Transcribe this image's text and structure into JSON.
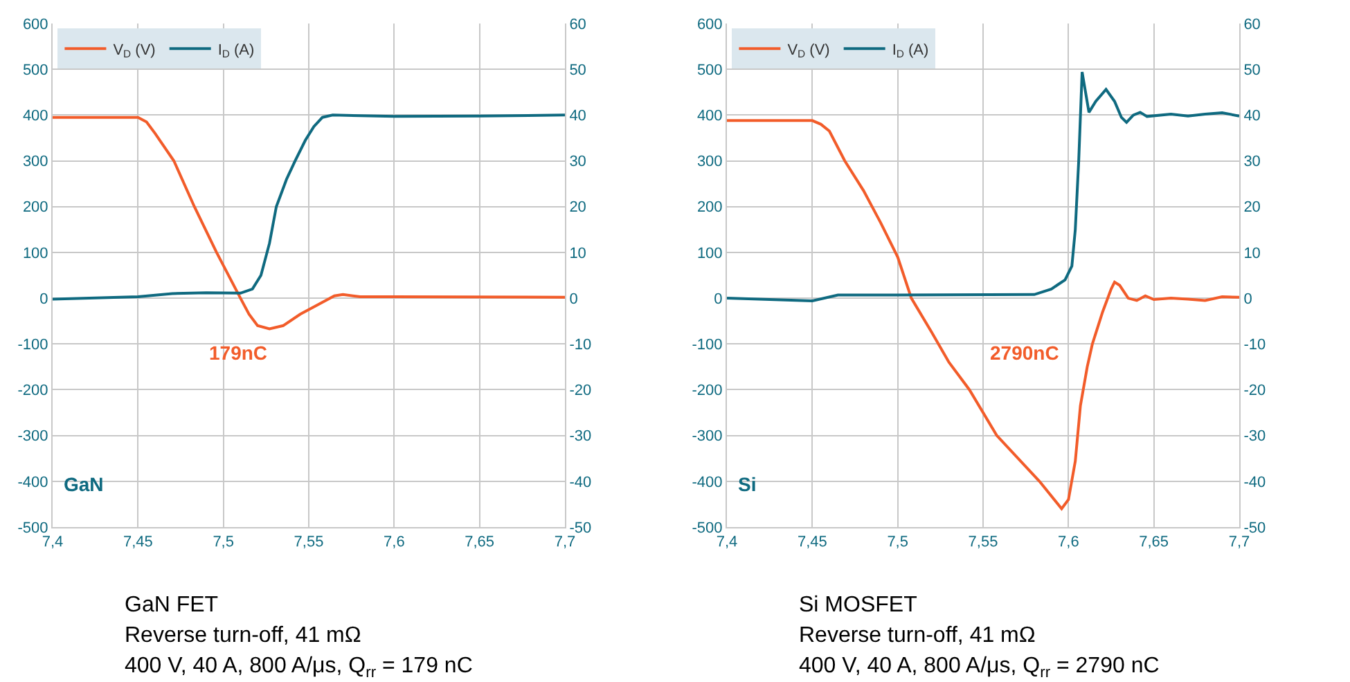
{
  "chart_data": [
    {
      "type": "line",
      "annotations": [
        "179nC",
        "GaN",
        "GaN FET",
        "Reverse turn-off, 41 mΩ",
        "400 V, 40 A, 800 A/μs, Q$_{rr}$ = 179 nC"
      ],
      "series": [
        {
          "name": "V$_{D}$ (V)",
          "color": "#f25c2a",
          "x": [
            7.4,
            7.45,
            7.455,
            7.46,
            7.471,
            7.483,
            7.496,
            7.51,
            7.515,
            7.52,
            7.527,
            7.535,
            7.545,
            7.555,
            7.565,
            7.57,
            7.58,
            7.6,
            7.7
          ],
          "values": [
            395,
            395,
            385,
            360,
            300,
            200,
            100,
            0,
            -35,
            -60,
            -67,
            -60,
            -35,
            -15,
            5,
            8,
            3,
            3,
            2
          ]
        },
        {
          "name": "I$_{D}$ (A)",
          "color": "#0f6a80",
          "axis": "y2",
          "x": [
            7.4,
            7.45,
            7.47,
            7.49,
            7.51,
            7.517,
            7.522,
            7.527,
            7.531,
            7.537,
            7.542,
            7.548,
            7.553,
            7.558,
            7.564,
            7.6,
            7.65,
            7.7
          ],
          "values": [
            -0.2,
            0.3,
            1.0,
            1.2,
            1.1,
            2,
            5,
            12,
            20,
            26,
            30,
            34.5,
            37.5,
            39.5,
            40,
            39.7,
            39.8,
            40
          ]
        }
      ],
      "xlim": [
        7.4,
        7.7
      ],
      "xticks": [
        {
          "value": 7.4,
          "label": "7,4"
        },
        {
          "value": 7.45,
          "label": "7,45"
        },
        {
          "value": 7.5,
          "label": "7,5"
        },
        {
          "value": 7.55,
          "label": "7,55"
        },
        {
          "value": 7.6,
          "label": "7,6"
        },
        {
          "value": 7.65,
          "label": "7,65"
        },
        {
          "value": 7.7,
          "label": "7,7"
        }
      ],
      "ylim": [
        -500,
        600
      ],
      "yticks": [
        -500,
        -400,
        -300,
        -200,
        -100,
        0,
        100,
        200,
        300,
        400,
        500,
        600
      ],
      "y2lim": [
        -50,
        60
      ],
      "y2ticks": [
        -50,
        -40,
        -30,
        -20,
        -10,
        0,
        10,
        20,
        30,
        40,
        50,
        60
      ],
      "grid": true,
      "legend": "top left",
      "marker": "none",
      "line_style": "solid"
    },
    {
      "type": "line",
      "annotations": [
        "2790nC",
        "Si",
        "Si MOSFET",
        "Reverse turn-off, 41 mΩ",
        "400 V, 40 A, 800 A/μs, Q$_{rr}$ = 2790 nC"
      ],
      "series": [
        {
          "name": "V$_{D}$ (V)",
          "color": "#f25c2a",
          "x": [
            7.4,
            7.45,
            7.455,
            7.46,
            7.469,
            7.48,
            7.49,
            7.5,
            7.508,
            7.52,
            7.53,
            7.542,
            7.558,
            7.583,
            7.596,
            7.6,
            7.604,
            7.607,
            7.611,
            7.614,
            7.62,
            7.625,
            7.627,
            7.63,
            7.635,
            7.64,
            7.645,
            7.65,
            7.66,
            7.67,
            7.68,
            7.69,
            7.7
          ],
          "values": [
            388,
            388,
            380,
            365,
            300,
            235,
            165,
            90,
            0,
            -75,
            -140,
            -200,
            -300,
            -400,
            -460,
            -440,
            -356,
            -235,
            -150,
            -100,
            -30,
            20,
            35,
            28,
            0,
            -5,
            5,
            -3,
            0,
            -2,
            -5,
            3,
            2
          ]
        },
        {
          "name": "I$_{D}$ (A)",
          "color": "#0f6a80",
          "axis": "y2",
          "x": [
            7.4,
            7.45,
            7.465,
            7.5,
            7.58,
            7.59,
            7.598,
            7.602,
            7.604,
            7.606,
            7.608,
            7.612,
            7.616,
            7.622,
            7.627,
            7.631,
            7.634,
            7.638,
            7.642,
            7.646,
            7.66,
            7.67,
            7.68,
            7.69,
            7.7
          ],
          "values": [
            0,
            -0.6,
            0.7,
            0.7,
            0.8,
            2,
            4,
            7,
            15,
            30,
            49.4,
            40.6,
            43,
            45.6,
            43,
            39.5,
            38.4,
            40,
            40.6,
            39.7,
            40.2,
            39.8,
            40.2,
            40.5,
            39.8
          ]
        }
      ],
      "xlim": [
        7.4,
        7.7
      ],
      "xticks": [
        {
          "value": 7.4,
          "label": "7,4"
        },
        {
          "value": 7.45,
          "label": "7,45"
        },
        {
          "value": 7.5,
          "label": "7,5"
        },
        {
          "value": 7.55,
          "label": "7,55"
        },
        {
          "value": 7.6,
          "label": "7,6"
        },
        {
          "value": 7.65,
          "label": "7,65"
        },
        {
          "value": 7.7,
          "label": "7,7"
        }
      ],
      "ylim": [
        -500,
        600
      ],
      "yticks": [
        -500,
        -400,
        -300,
        -200,
        -100,
        0,
        100,
        200,
        300,
        400,
        500,
        600
      ],
      "y2lim": [
        -50,
        60
      ],
      "y2ticks": [
        -50,
        -40,
        -30,
        -20,
        -10,
        0,
        10,
        20,
        30,
        40,
        50,
        60
      ],
      "grid": true,
      "legend": "top left",
      "marker": "none",
      "line_style": "solid"
    }
  ]
}
